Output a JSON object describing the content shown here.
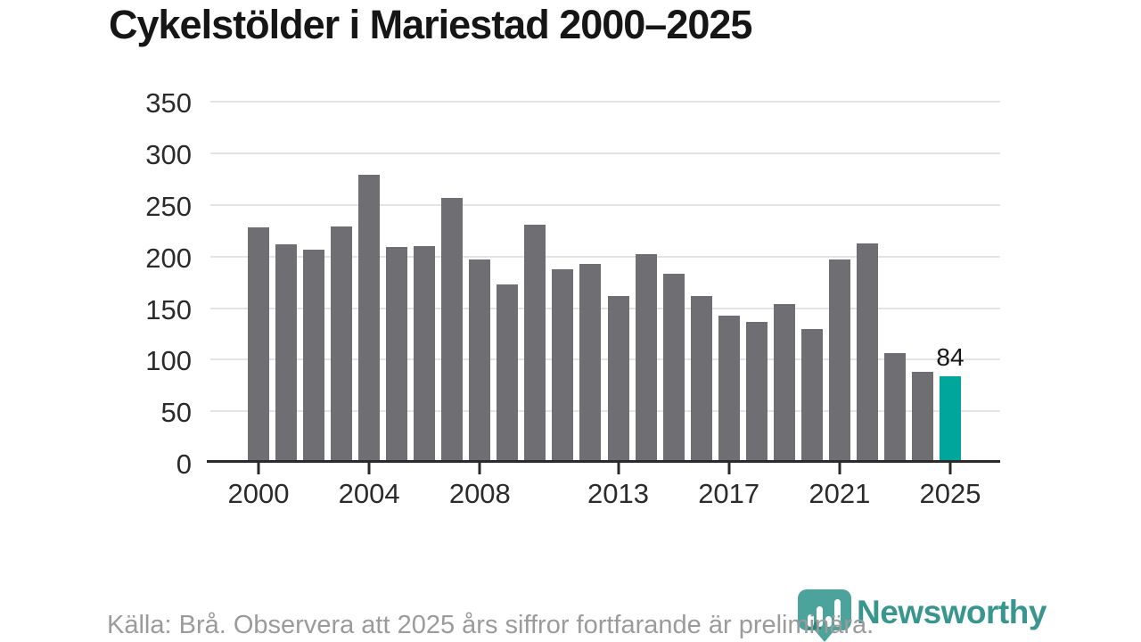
{
  "chart_data": {
    "type": "bar",
    "title": "Cykelstölder i Mariestad 2000–2025",
    "x": [
      2000,
      2001,
      2002,
      2003,
      2004,
      2005,
      2006,
      2007,
      2008,
      2009,
      2010,
      2011,
      2012,
      2013,
      2014,
      2015,
      2016,
      2017,
      2018,
      2019,
      2020,
      2021,
      2022,
      2023,
      2024,
      2025
    ],
    "values": [
      228,
      212,
      207,
      229,
      279,
      209,
      210,
      257,
      197,
      173,
      231,
      188,
      193,
      162,
      202,
      183,
      162,
      143,
      137,
      154,
      130,
      197,
      213,
      106,
      88,
      84
    ],
    "highlight_year": 2025,
    "annotation_label": "84",
    "ylim": [
      0,
      350
    ],
    "yticks": [
      0,
      50,
      100,
      150,
      200,
      250,
      300,
      350
    ],
    "xtick_years": [
      2000,
      2004,
      2008,
      2013,
      2017,
      2021,
      2025
    ],
    "grid": "horizontal",
    "legend": "none",
    "colors": {
      "bar": "#6f6e73",
      "highlight": "#00a59b",
      "gridline": "#e4e4e4",
      "axis": "#2b2b2b"
    }
  },
  "footer": {
    "source": "Källa: Brå. Observera att 2025 års siffror fortfarande är preliminära.",
    "logo_text": "Newsworthy"
  }
}
